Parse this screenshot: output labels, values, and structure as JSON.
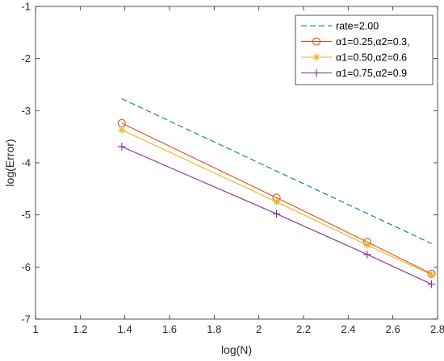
{
  "chart_data": {
    "type": "line",
    "title": "",
    "xlabel": "log(N)",
    "ylabel": "log(Error)",
    "xlim": [
      1,
      2.8
    ],
    "ylim": [
      -7,
      -1
    ],
    "xticks": [
      1,
      1.2,
      1.4,
      1.6,
      1.8,
      2,
      2.2,
      2.4,
      2.6,
      2.8
    ],
    "xtick_labels": [
      "1",
      "1.2",
      "1.4",
      "1.6",
      "1.8",
      "2",
      "2.2",
      "2.4",
      "2.6",
      "2.8"
    ],
    "yticks": [
      -7,
      -6,
      -5,
      -4,
      -3,
      -2,
      -1
    ],
    "ytick_labels": [
      "-7",
      "-6",
      "-5",
      "-4",
      "-3",
      "-2",
      "-1"
    ],
    "grid": false,
    "legend_position": "top-right",
    "series": [
      {
        "name": "rate=2.00",
        "color": "#0072BD",
        "line": "dashed",
        "marker": "none",
        "x": [
          1.386,
          2.773
        ],
        "y": [
          -2.77,
          -5.55
        ]
      },
      {
        "name": "α1=0.25,α2=0.3,",
        "color": "#D95319",
        "line": "solid",
        "marker": "circle",
        "x": [
          1.386,
          2.079,
          2.485,
          2.773
        ],
        "y": [
          -3.24,
          -4.67,
          -5.52,
          -6.13
        ]
      },
      {
        "name": "α1=0.50,α2=0.6",
        "color": "#EDB120",
        "line": "solid",
        "marker": "asterisk",
        "x": [
          1.386,
          2.079,
          2.485,
          2.773
        ],
        "y": [
          -3.37,
          -4.75,
          -5.58,
          -6.15
        ]
      },
      {
        "name": "α1=0.75,α2=0.9",
        "color": "#7E2F8E",
        "line": "solid",
        "marker": "plus",
        "x": [
          1.386,
          2.079,
          2.485,
          2.773
        ],
        "y": [
          -3.69,
          -4.98,
          -5.76,
          -6.33
        ]
      }
    ]
  }
}
